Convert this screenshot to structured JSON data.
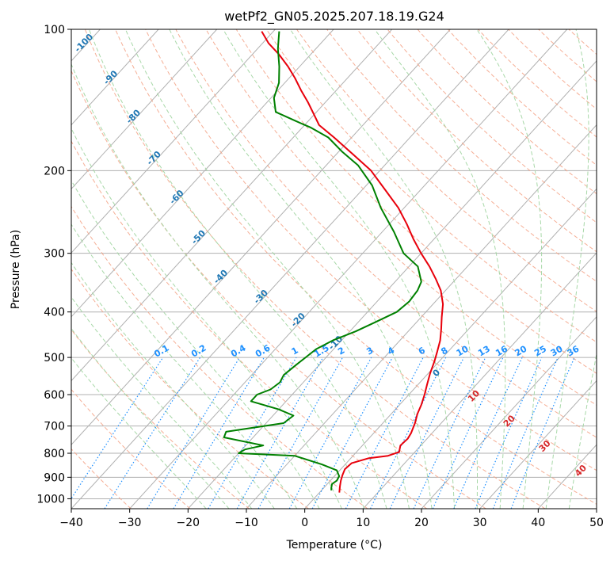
{
  "chart_data": {
    "type": "line",
    "title": "wetPf2_GN05.2025.207.18.19.G24",
    "xlabel": "Temperature (°C)",
    "ylabel": "Pressure (hPa)",
    "x_scale": "skew-T",
    "y_scale": "log",
    "xlim": [
      -40,
      50
    ],
    "ylim": [
      1050,
      100
    ],
    "x_ticks": [
      -40,
      -30,
      -20,
      -10,
      0,
      10,
      20,
      30,
      40,
      50
    ],
    "y_ticks": [
      1000,
      900,
      800,
      700,
      600,
      500,
      400,
      300,
      200,
      100
    ],
    "grid": true,
    "colors": {
      "temperature": "#e8000b",
      "dewpoint": "#008000",
      "isotherm": "#b0b0b0",
      "dry_adiabat": "#f4a58a",
      "moist_adiabat": "#a8d8a8",
      "mixing_ratio": "#1e90ff",
      "dry_adiabat_label": "#1f77b4",
      "moist_label": "#d62728"
    },
    "series": [
      {
        "key": "temperature",
        "points": [
          [
            3.4,
            970
          ],
          [
            2.5,
            940
          ],
          [
            1.8,
            915
          ],
          [
            1.2,
            890
          ],
          [
            0.7,
            865
          ],
          [
            0.9,
            840
          ],
          [
            3.0,
            820
          ],
          [
            6.0,
            810
          ],
          [
            7.3,
            795
          ],
          [
            6.5,
            770
          ],
          [
            6.7,
            745
          ],
          [
            6.4,
            725
          ],
          [
            5.5,
            690
          ],
          [
            4.5,
            660
          ],
          [
            3.7,
            630
          ],
          [
            2.7,
            600
          ],
          [
            1.5,
            570
          ],
          [
            0.3,
            540
          ],
          [
            -0.8,
            510
          ],
          [
            -1.9,
            485
          ],
          [
            -3.1,
            460
          ],
          [
            -4.7,
            435
          ],
          [
            -6.5,
            410
          ],
          [
            -8.3,
            385
          ],
          [
            -10.8,
            360
          ],
          [
            -13.5,
            340
          ],
          [
            -16.5,
            320
          ],
          [
            -20.0,
            300
          ],
          [
            -23.5,
            280
          ],
          [
            -27.0,
            260
          ],
          [
            -31.0,
            240
          ],
          [
            -36.0,
            220
          ],
          [
            -41.5,
            200
          ],
          [
            -47.0,
            185
          ],
          [
            -53.0,
            170
          ],
          [
            -57.5,
            160
          ],
          [
            -60.0,
            152
          ],
          [
            -63.0,
            143
          ],
          [
            -66.0,
            135
          ],
          [
            -69.0,
            127
          ],
          [
            -72.0,
            120
          ],
          [
            -75.5,
            113
          ],
          [
            -79.0,
            107
          ],
          [
            -82.0,
            101
          ]
        ]
      },
      {
        "key": "dewpoint",
        "points": [
          [
            1.7,
            960
          ],
          [
            1.3,
            948
          ],
          [
            0.8,
            930
          ],
          [
            1.1,
            915
          ],
          [
            0.8,
            895
          ],
          [
            -0.5,
            870
          ],
          [
            -4.0,
            845
          ],
          [
            -10.0,
            810
          ],
          [
            -20.0,
            800
          ],
          [
            -19.5,
            785
          ],
          [
            -17.0,
            770
          ],
          [
            -25.0,
            740
          ],
          [
            -25.5,
            720
          ],
          [
            -17.0,
            690
          ],
          [
            -16.5,
            665
          ],
          [
            -20.0,
            645
          ],
          [
            -26.0,
            620
          ],
          [
            -26.0,
            600
          ],
          [
            -24.5,
            585
          ],
          [
            -24.0,
            565
          ],
          [
            -24.5,
            545
          ],
          [
            -24.0,
            520
          ],
          [
            -23.5,
            500
          ],
          [
            -23.0,
            480
          ],
          [
            -21.5,
            460
          ],
          [
            -19.0,
            440
          ],
          [
            -17.0,
            420
          ],
          [
            -15.0,
            400
          ],
          [
            -14.5,
            380
          ],
          [
            -14.8,
            360
          ],
          [
            -15.5,
            345
          ],
          [
            -18.5,
            320
          ],
          [
            -23.0,
            300
          ],
          [
            -28.0,
            270
          ],
          [
            -34.0,
            240
          ],
          [
            -39.0,
            215
          ],
          [
            -44.5,
            195
          ],
          [
            -49.5,
            182
          ],
          [
            -54.0,
            170
          ],
          [
            -58.5,
            162
          ],
          [
            -62.0,
            157
          ],
          [
            -67.0,
            150
          ],
          [
            -69.5,
            140
          ],
          [
            -71.0,
            130
          ],
          [
            -73.5,
            120
          ],
          [
            -76.5,
            110
          ],
          [
            -79.0,
            101
          ]
        ]
      }
    ],
    "dry_adiabat_labels": [
      {
        "text": "-100",
        "p": 108
      },
      {
        "text": "-90",
        "p": 128
      },
      {
        "text": "-80",
        "p": 155
      },
      {
        "text": "-70",
        "p": 190
      },
      {
        "text": "-60",
        "p": 230
      },
      {
        "text": "-50",
        "p": 280
      },
      {
        "text": "-40",
        "p": 340
      },
      {
        "text": "-30",
        "p": 375
      },
      {
        "text": "-20",
        "p": 420
      },
      {
        "text": "-10",
        "p": 470
      },
      {
        "text": "0",
        "p": 545
      },
      {
        "text": "10",
        "p": 610
      },
      {
        "text": "20",
        "p": 690
      },
      {
        "text": "30",
        "p": 780
      },
      {
        "text": "40",
        "p": 880
      }
    ],
    "mixing_ratio_labels": [
      "0.1",
      "0.2",
      "0.4",
      "0.6",
      "1",
      "1.5",
      "2",
      "3",
      "4",
      "6",
      "8",
      "10",
      "13",
      "16",
      "20",
      "25",
      "30",
      "36"
    ],
    "mixing_ratio_values": [
      0.1,
      0.2,
      0.4,
      0.6,
      1,
      1.5,
      2,
      3,
      4,
      6,
      8,
      10,
      13,
      16,
      20,
      25,
      30,
      36
    ]
  }
}
